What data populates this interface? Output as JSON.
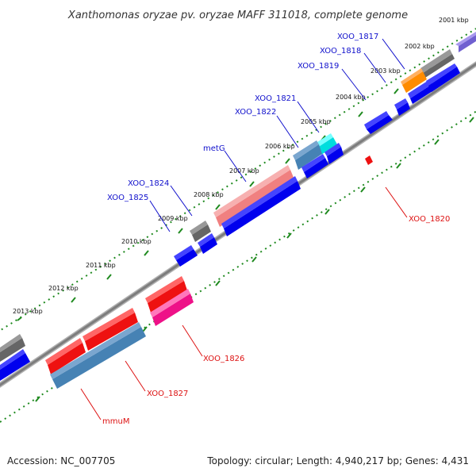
{
  "title": "Xanthomonas oryzae pv. oryzae MAFF 311018, complete genome",
  "footer": {
    "accession": "Accession: NC_007705",
    "summary": "Topology: circular; Length: 4,940,217 bp; Genes: 4,431"
  },
  "colors": {
    "axis": "#8a8a8a",
    "tick_dots": "#1f8a1f",
    "gene_blue": "#0000ee",
    "gene_red": "#ee1111",
    "gene_pink": "#f08080",
    "gene_magenta": "#ee1188",
    "gene_steel": "#4682b4",
    "gene_gray": "#666666",
    "gene_orange": "#ff8c00",
    "gene_cyan": "#00dddd",
    "gene_purple": "#7060d0",
    "label_blue": "#1010cc",
    "label_red": "#dd1111"
  },
  "kbp_marks": [
    "2001 kbp",
    "2002 kbp",
    "2003 kbp",
    "2004 kbp",
    "2005 kbp",
    "2006 kbp",
    "2007 kbp",
    "2008 kbp",
    "2009 kbp",
    "2010 kbp",
    "2011 kbp",
    "2012 kbp",
    "2013 kbp"
  ],
  "genes_forward": [
    {
      "name": "XOO_1817",
      "kind": "gray"
    },
    {
      "name": "XOO_1818",
      "kind": "orange"
    },
    {
      "name": "XOO_1819",
      "kind": "blue"
    },
    {
      "name": "XOO_1821",
      "kind": "cyan"
    },
    {
      "name": "XOO_1822",
      "kind": "steel"
    },
    {
      "name": "metG",
      "kind": "pink"
    },
    {
      "name": "XOO_1824",
      "kind": "gray"
    },
    {
      "name": "XOO_1825",
      "kind": "blue"
    }
  ],
  "genes_reverse": [
    {
      "name": "XOO_1820",
      "kind": "red"
    },
    {
      "name": "XOO_1826",
      "kind": "magenta"
    },
    {
      "name": "XOO_1827",
      "kind": "steel"
    },
    {
      "name": "mmuM",
      "kind": "red"
    }
  ]
}
